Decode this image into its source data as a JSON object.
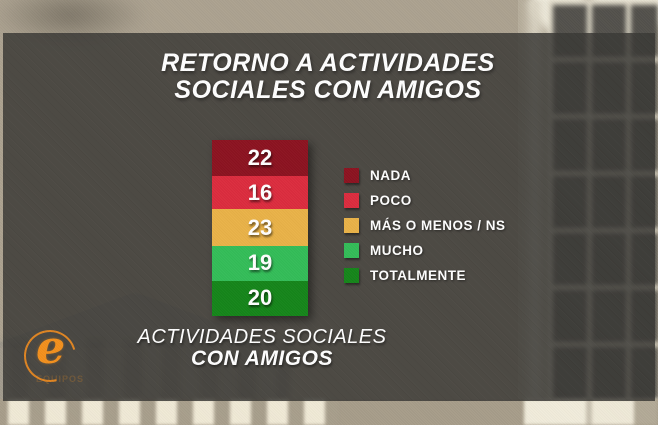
{
  "title": {
    "line1": "RETORNO A ACTIVIDADES",
    "line2": "SOCIALES CON AMIGOS"
  },
  "chart_data": {
    "type": "bar",
    "stacked": true,
    "orientation": "vertical-stacked-single-bar",
    "title": "RETORNO A ACTIVIDADES SOCIALES CON AMIGOS",
    "category_label": "ACTIVIDADES SOCIALES CON AMIGOS",
    "total": 100,
    "legend_position": "right",
    "segments": [
      {
        "label": "NADA",
        "value": 22,
        "color": "#8c1220"
      },
      {
        "label": "POCO",
        "value": 16,
        "color": "#dc2c3e"
      },
      {
        "label": "MÁS O MENOS / NS",
        "value": 23,
        "color": "#e9b248"
      },
      {
        "label": "MUCHO",
        "value": 19,
        "color": "#33bd58"
      },
      {
        "label": "TOTALMENTE",
        "value": 20,
        "color": "#15851a"
      }
    ]
  },
  "caption": {
    "line1": "ACTIVIDADES SOCIALES",
    "line2": "CON AMIGOS"
  },
  "logo": {
    "letter": "e",
    "wordmark": "EQUIPOS",
    "accent_color": "#f3901d"
  }
}
